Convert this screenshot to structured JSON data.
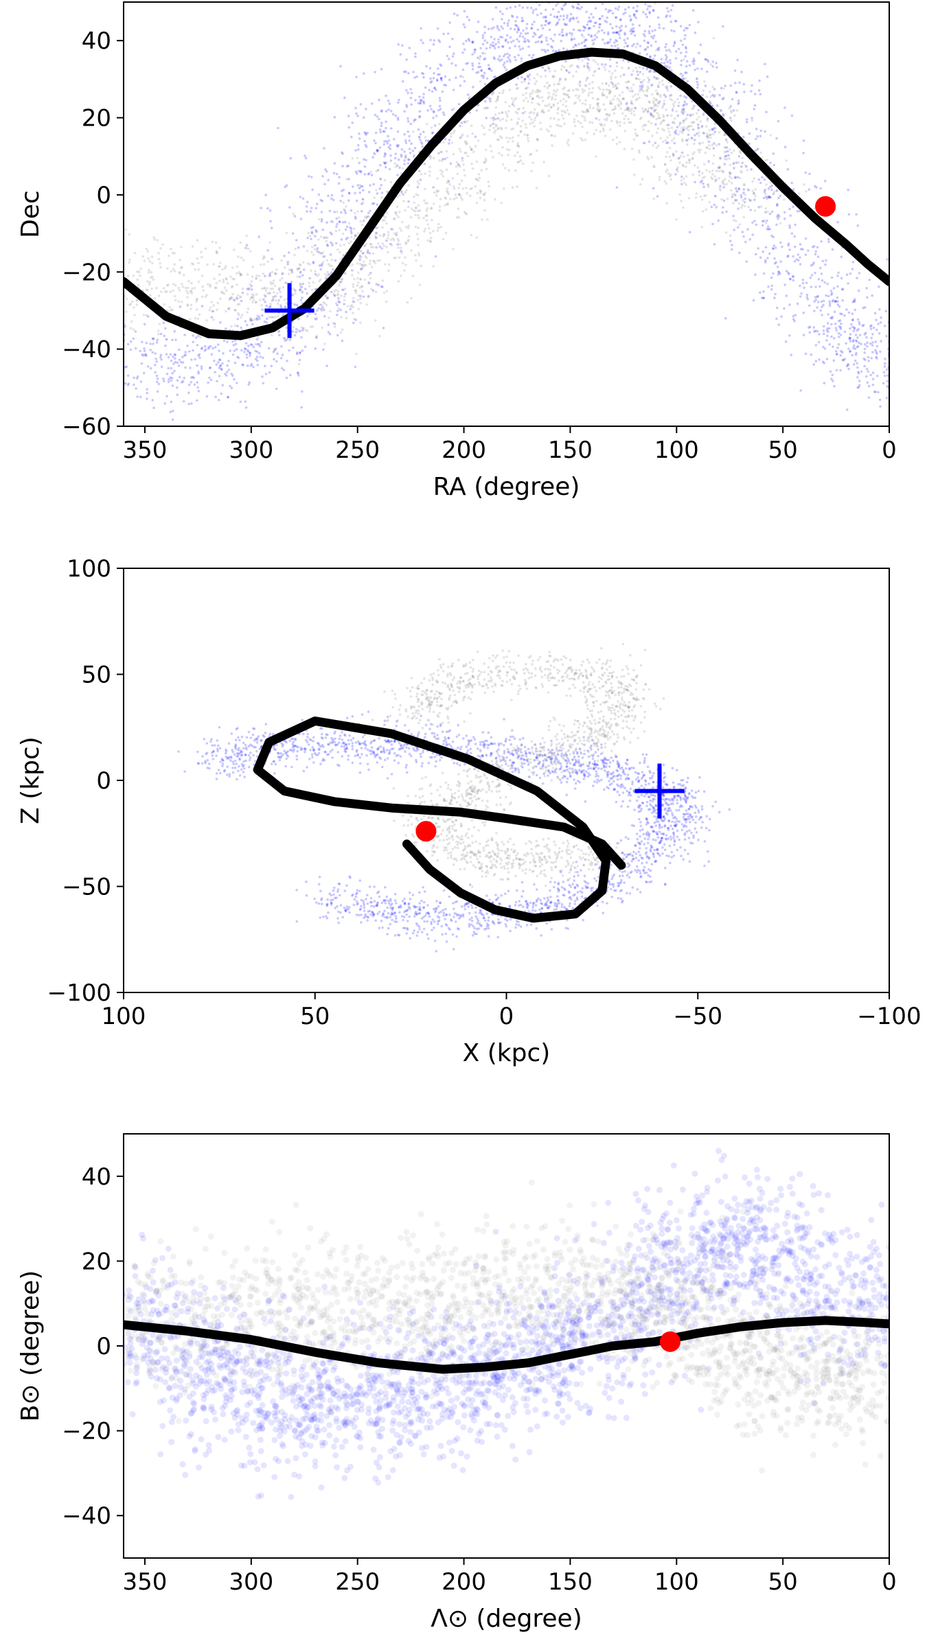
{
  "chart_data": [
    {
      "type": "scatter",
      "xlabel": "RA (degree)",
      "ylabel": "Dec",
      "xlim": [
        360,
        0
      ],
      "ylim": [
        -60,
        50
      ],
      "x_ticks": [
        350,
        300,
        250,
        200,
        150,
        100,
        50,
        0
      ],
      "y_ticks": [
        40,
        20,
        0,
        -20,
        -40,
        -60
      ],
      "tick_labels_x": [
        "350",
        "300",
        "250",
        "200",
        "150",
        "100",
        "50",
        "0"
      ],
      "tick_labels_y": [
        "40",
        "20",
        "0",
        "−20",
        "−40",
        "−60"
      ],
      "series": [
        {
          "kind": "blue-particles",
          "color": "#0000ff",
          "path": [
            [
              360,
              -43
            ],
            [
              330,
              -45
            ],
            [
              300,
              -40
            ],
            [
              275,
              -30
            ],
            [
              260,
              -10
            ],
            [
              245,
              8
            ],
            [
              225,
              20
            ],
            [
              200,
              33
            ],
            [
              180,
              40
            ],
            [
              160,
              45
            ],
            [
              140,
              46
            ],
            [
              120,
              42
            ],
            [
              105,
              34
            ],
            [
              85,
              20
            ],
            [
              65,
              2
            ],
            [
              45,
              -16
            ],
            [
              25,
              -32
            ],
            [
              10,
              -42
            ],
            [
              0,
              -45
            ]
          ],
          "spread": 6,
          "count": 2600
        },
        {
          "kind": "gray-particles",
          "color": "#808080",
          "path": [
            [
              360,
              -25
            ],
            [
              330,
              -23
            ],
            [
              300,
              -24
            ],
            [
              275,
              -28
            ],
            [
              255,
              -20
            ],
            [
              235,
              -10
            ],
            [
              215,
              0
            ],
            [
              195,
              10
            ],
            [
              175,
              20
            ],
            [
              155,
              26
            ],
            [
              135,
              28
            ],
            [
              115,
              24
            ],
            [
              100,
              18
            ],
            [
              85,
              10
            ],
            [
              70,
              0
            ]
          ],
          "spread": 6,
          "count": 2000
        },
        {
          "kind": "orbit",
          "color": "#000000",
          "points": [
            [
              360,
              -22.5
            ],
            [
              340,
              -31.5
            ],
            [
              320,
              -36
            ],
            [
              305,
              -36.5
            ],
            [
              290,
              -34.5
            ],
            [
              275,
              -29.5
            ],
            [
              260,
              -21
            ],
            [
              245,
              -9
            ],
            [
              230,
              3
            ],
            [
              215,
              13
            ],
            [
              200,
              22
            ],
            [
              185,
              29
            ],
            [
              170,
              33.5
            ],
            [
              155,
              36
            ],
            [
              140,
              37
            ],
            [
              125,
              36.5
            ],
            [
              110,
              33.5
            ],
            [
              95,
              27.5
            ],
            [
              80,
              19.5
            ],
            [
              65,
              10.5
            ],
            [
              50,
              2
            ],
            [
              35,
              -6
            ],
            [
              20,
              -13
            ],
            [
              10,
              -18
            ],
            [
              0,
              -22.5
            ]
          ]
        },
        {
          "kind": "progenitor",
          "color": "#0000ff",
          "x": 282,
          "y": -30
        },
        {
          "kind": "current-position",
          "color": "#ff0000",
          "x": 30,
          "y": -3
        }
      ]
    },
    {
      "type": "scatter",
      "xlabel": "X (kpc)",
      "ylabel": "Z (kpc)",
      "xlim": [
        100,
        -100
      ],
      "ylim": [
        -100,
        100
      ],
      "x_ticks": [
        100,
        50,
        0,
        -50,
        -100
      ],
      "y_ticks": [
        100,
        50,
        0,
        -50,
        -100
      ],
      "tick_labels_x": [
        "100",
        "50",
        "0",
        "−50",
        "−100"
      ],
      "tick_labels_y": [
        "100",
        "50",
        "0",
        "−50",
        "−100"
      ],
      "series": [
        {
          "kind": "blue-particles",
          "color": "#0000ff",
          "path": [
            [
              75,
              8
            ],
            [
              65,
              14
            ],
            [
              50,
              18
            ],
            [
              30,
              17
            ],
            [
              10,
              14
            ],
            [
              -10,
              10
            ],
            [
              -25,
              5
            ],
            [
              -40,
              -5
            ],
            [
              -45,
              -15
            ],
            [
              -40,
              -30
            ],
            [
              -25,
              -50
            ],
            [
              -10,
              -60
            ],
            [
              10,
              -65
            ],
            [
              30,
              -63
            ],
            [
              45,
              -55
            ]
          ],
          "spread": 5,
          "count": 2300
        },
        {
          "kind": "gray-particles",
          "color": "#808080",
          "path": [
            [
              25,
              30
            ],
            [
              15,
              45
            ],
            [
              -5,
              52
            ],
            [
              -25,
              50
            ],
            [
              -30,
              35
            ],
            [
              -20,
              18
            ],
            [
              -5,
              8
            ],
            [
              10,
              -5
            ],
            [
              20,
              -20
            ],
            [
              10,
              -35
            ],
            [
              -5,
              -40
            ],
            [
              -25,
              -35
            ]
          ],
          "spread": 5,
          "count": 1600
        },
        {
          "kind": "orbit",
          "color": "#000000",
          "points": [
            [
              26,
              -30
            ],
            [
              20,
              -42
            ],
            [
              12,
              -53
            ],
            [
              3,
              -61
            ],
            [
              -7,
              -65
            ],
            [
              -18,
              -63
            ],
            [
              -25,
              -52
            ],
            [
              -26,
              -38
            ],
            [
              -20,
              -22
            ],
            [
              -8,
              -5
            ],
            [
              10,
              10
            ],
            [
              30,
              22
            ],
            [
              50,
              28
            ],
            [
              62,
              18
            ],
            [
              65,
              5
            ],
            [
              58,
              -5
            ],
            [
              45,
              -10
            ],
            [
              30,
              -13
            ],
            [
              12,
              -15
            ],
            [
              0,
              -18
            ],
            [
              -15,
              -22
            ],
            [
              -25,
              -30
            ],
            [
              -30,
              -40
            ]
          ]
        },
        {
          "kind": "progenitor",
          "color": "#0000ff",
          "x": -40,
          "y": -5
        },
        {
          "kind": "current-position",
          "color": "#ff0000",
          "x": 21,
          "y": -24
        }
      ]
    },
    {
      "type": "scatter",
      "xlabel": "Λ⊙ (degree)",
      "ylabel": "B⊙ (degree)",
      "xlim": [
        360,
        0
      ],
      "ylim": [
        -50,
        50
      ],
      "x_ticks": [
        350,
        300,
        250,
        200,
        150,
        100,
        50,
        0
      ],
      "y_ticks": [
        40,
        20,
        0,
        -20,
        -40
      ],
      "tick_labels_x": [
        "350",
        "300",
        "250",
        "200",
        "150",
        "100",
        "50",
        "0"
      ],
      "tick_labels_y": [
        "40",
        "20",
        "0",
        "−20",
        "−40"
      ],
      "series": [
        {
          "kind": "blue-particles",
          "color": "#0000ff",
          "path": [
            [
              360,
              8
            ],
            [
              340,
              2
            ],
            [
              320,
              -3
            ],
            [
              300,
              -10
            ],
            [
              280,
              -16
            ],
            [
              260,
              -15
            ],
            [
              240,
              -12
            ],
            [
              220,
              -10
            ],
            [
              200,
              -6
            ],
            [
              180,
              -6
            ],
            [
              160,
              -2
            ],
            [
              140,
              3
            ],
            [
              120,
              12
            ],
            [
              100,
              18
            ],
            [
              80,
              24
            ],
            [
              60,
              26
            ],
            [
              40,
              20
            ],
            [
              20,
              10
            ],
            [
              0,
              4
            ]
          ],
          "spread": 8,
          "count": 2400
        },
        {
          "kind": "gray-particles",
          "color": "#808080",
          "path": [
            [
              360,
              4
            ],
            [
              330,
              6
            ],
            [
              300,
              8
            ],
            [
              270,
              9
            ],
            [
              240,
              8
            ],
            [
              210,
              10
            ],
            [
              180,
              12
            ],
            [
              150,
              14
            ],
            [
              120,
              12
            ],
            [
              100,
              8
            ],
            [
              80,
              2
            ],
            [
              60,
              -3
            ],
            [
              40,
              -6
            ],
            [
              20,
              -8
            ],
            [
              0,
              -9
            ]
          ],
          "spread": 8,
          "count": 1800
        },
        {
          "kind": "orbit",
          "color": "#000000",
          "points": [
            [
              360,
              5
            ],
            [
              330,
              3.5
            ],
            [
              300,
              1.5
            ],
            [
              270,
              -1.5
            ],
            [
              240,
              -4
            ],
            [
              210,
              -5.5
            ],
            [
              190,
              -5
            ],
            [
              170,
              -4
            ],
            [
              150,
              -2
            ],
            [
              130,
              0
            ],
            [
              110,
              1
            ],
            [
              90,
              3
            ],
            [
              70,
              4.5
            ],
            [
              50,
              5.5
            ],
            [
              30,
              6
            ],
            [
              10,
              5.5
            ],
            [
              0,
              5.2
            ]
          ]
        },
        {
          "kind": "current-position",
          "color": "#ff0000",
          "x": 103,
          "y": 1
        }
      ]
    }
  ]
}
